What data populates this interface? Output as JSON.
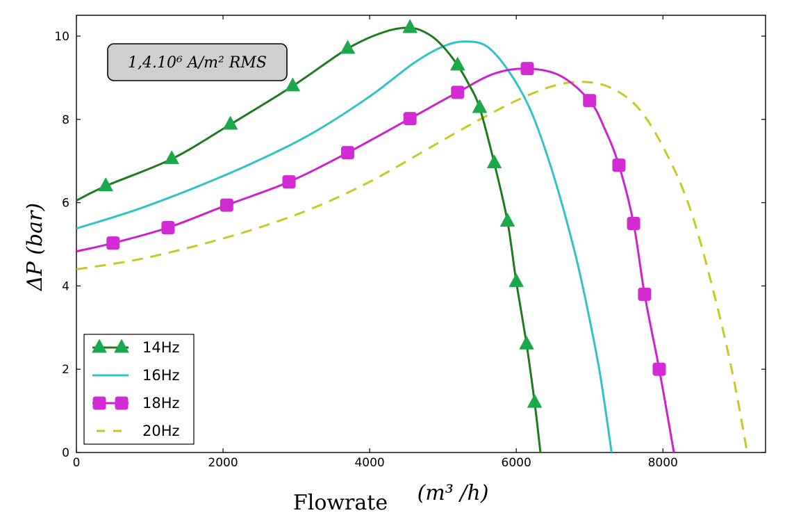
{
  "chart_data": {
    "type": "line",
    "xlabel": "Flowrate",
    "xlabel_unit": "(m³ /h)",
    "ylabel": "ΔP (bar)",
    "xlim": [
      0,
      9400
    ],
    "ylim": [
      0,
      10.5
    ],
    "xticks": [
      "0",
      "2000",
      "4000",
      "6000",
      "8000"
    ],
    "yticks": [
      "0",
      "2",
      "4",
      "6",
      "8",
      "10"
    ],
    "grid": false,
    "legend_position": "bottom-left",
    "annotation": "1,4.10⁶ A/m² RMS",
    "series": [
      {
        "name": "14Hz",
        "color": "#1f7a1f",
        "marker_color": "#1aa84a",
        "style": "solid",
        "marker": "triangle",
        "points": [
          [
            0,
            6.05
          ],
          [
            400,
            6.4
          ],
          [
            1300,
            7.05
          ],
          [
            2100,
            7.88
          ],
          [
            2950,
            8.8
          ],
          [
            3700,
            9.7
          ],
          [
            4200,
            10.1
          ],
          [
            4550,
            10.2
          ],
          [
            4800,
            10.05
          ],
          [
            5000,
            9.75
          ],
          [
            5200,
            9.3
          ],
          [
            5350,
            8.85
          ],
          [
            5500,
            8.28
          ],
          [
            5700,
            6.95
          ],
          [
            5880,
            5.55
          ],
          [
            6000,
            4.1
          ],
          [
            6140,
            2.6
          ],
          [
            6250,
            1.2
          ],
          [
            6330,
            0.0
          ]
        ],
        "markers": [
          [
            400,
            6.4
          ],
          [
            1300,
            7.05
          ],
          [
            2100,
            7.88
          ],
          [
            2950,
            8.8
          ],
          [
            3700,
            9.7
          ],
          [
            4550,
            10.2
          ],
          [
            5200,
            9.3
          ],
          [
            5500,
            8.28
          ],
          [
            5700,
            6.95
          ],
          [
            5880,
            5.55
          ],
          [
            6000,
            4.1
          ],
          [
            6140,
            2.6
          ],
          [
            6250,
            1.2
          ]
        ]
      },
      {
        "name": "16Hz",
        "color": "#2ec4c4",
        "style": "solid",
        "marker": "none",
        "points": [
          [
            0,
            5.38
          ],
          [
            800,
            5.82
          ],
          [
            1600,
            6.35
          ],
          [
            2400,
            6.95
          ],
          [
            3200,
            7.65
          ],
          [
            4000,
            8.55
          ],
          [
            4600,
            9.35
          ],
          [
            5000,
            9.75
          ],
          [
            5300,
            9.87
          ],
          [
            5600,
            9.75
          ],
          [
            5900,
            9.15
          ],
          [
            6200,
            8.2
          ],
          [
            6500,
            6.7
          ],
          [
            6800,
            4.8
          ],
          [
            7000,
            3.2
          ],
          [
            7150,
            1.8
          ],
          [
            7300,
            0.0
          ]
        ]
      },
      {
        "name": "18Hz",
        "color": "#cc22cc",
        "marker_color": "#d42ad4",
        "style": "solid",
        "marker": "square",
        "points": [
          [
            0,
            4.83
          ],
          [
            500,
            5.03
          ],
          [
            1250,
            5.4
          ],
          [
            2050,
            5.94
          ],
          [
            2900,
            6.5
          ],
          [
            3700,
            7.2
          ],
          [
            4550,
            8.02
          ],
          [
            5200,
            8.65
          ],
          [
            5700,
            9.1
          ],
          [
            6150,
            9.22
          ],
          [
            6600,
            9.05
          ],
          [
            7000,
            8.45
          ],
          [
            7200,
            7.8
          ],
          [
            7400,
            6.9
          ],
          [
            7600,
            5.5
          ],
          [
            7750,
            3.8
          ],
          [
            7950,
            2.0
          ],
          [
            8150,
            0.0
          ]
        ],
        "markers": [
          [
            500,
            5.03
          ],
          [
            1250,
            5.4
          ],
          [
            2050,
            5.94
          ],
          [
            2900,
            6.5
          ],
          [
            3700,
            7.2
          ],
          [
            4550,
            8.02
          ],
          [
            5200,
            8.65
          ],
          [
            6150,
            9.22
          ],
          [
            7000,
            8.45
          ],
          [
            7400,
            6.9
          ],
          [
            7600,
            5.5
          ],
          [
            7750,
            3.8
          ],
          [
            7950,
            2.0
          ]
        ]
      },
      {
        "name": "20Hz",
        "color": "#c8c822",
        "style": "dashed",
        "marker": "none",
        "points": [
          [
            0,
            4.4
          ],
          [
            800,
            4.62
          ],
          [
            1600,
            4.95
          ],
          [
            2400,
            5.35
          ],
          [
            3200,
            5.85
          ],
          [
            4000,
            6.5
          ],
          [
            4800,
            7.3
          ],
          [
            5400,
            7.9
          ],
          [
            6000,
            8.45
          ],
          [
            6500,
            8.8
          ],
          [
            6900,
            8.9
          ],
          [
            7300,
            8.75
          ],
          [
            7700,
            8.2
          ],
          [
            8100,
            7.0
          ],
          [
            8400,
            5.7
          ],
          [
            8700,
            3.8
          ],
          [
            8950,
            1.9
          ],
          [
            9150,
            0.0
          ]
        ]
      }
    ]
  }
}
